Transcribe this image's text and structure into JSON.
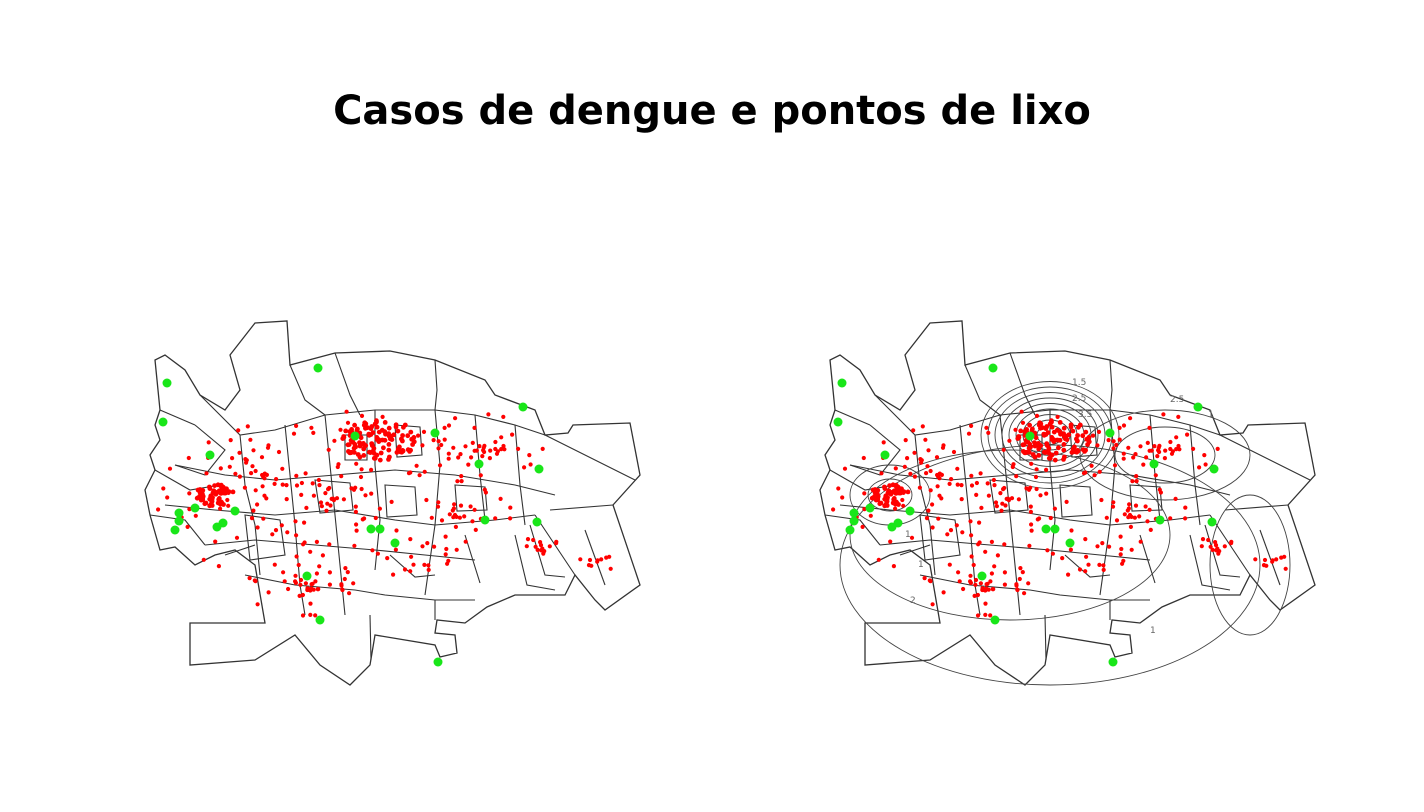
{
  "slide": {
    "title": "Casos de dengue e pontos de lixo"
  },
  "maps": [
    {
      "id": "left",
      "contour_overlay": false
    },
    {
      "id": "right",
      "contour_overlay": true,
      "contour_labels": [
        "1.5",
        "2.5",
        "3.5",
        "1",
        "2.5",
        "1",
        "2",
        "1",
        "1"
      ]
    }
  ],
  "colors": {
    "dengue_cases": "#ff0000",
    "garbage_points": "#19e619",
    "boundaries": "#333333",
    "contours": "#444444"
  },
  "legend_semantics": {
    "red_dots": "dengue cases",
    "green_dots": "garbage points"
  }
}
